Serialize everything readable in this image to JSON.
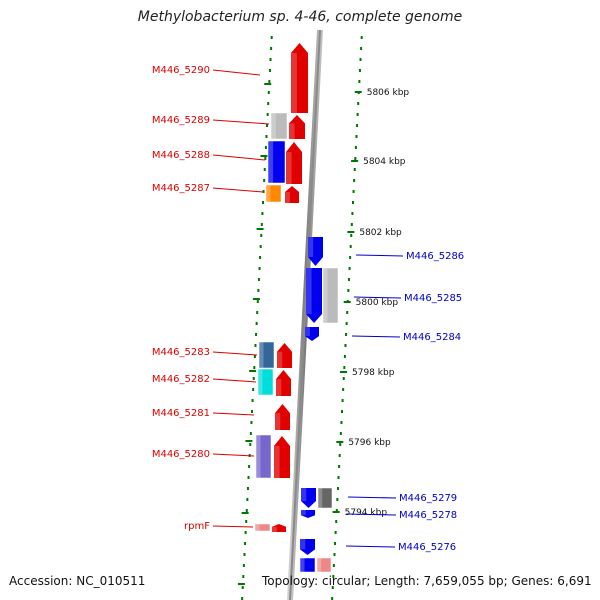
{
  "header": {
    "title": "Methylobacterium sp. 4-46, complete genome"
  },
  "footer": {
    "accession": "Accession: NC_010511",
    "summary": "Topology: circular; Length: 7,659,055 bp; Genes: 6,691"
  },
  "colors": {
    "plus_strand_label": "#dd0000",
    "minus_strand_label": "#0000cc",
    "tick_dots": "#007700",
    "backbone": "#8a8a8a"
  },
  "scale": {
    "unit": "kbp",
    "labels": [
      "5806 kbp",
      "5804 kbp",
      "5802 kbp",
      "5800 kbp",
      "5798 kbp",
      "5796 kbp",
      "5794 kbp"
    ]
  },
  "genes_plus": [
    {
      "label": "M446_5290",
      "color": "#e00000"
    },
    {
      "label": "M446_5289",
      "color": "#bbbbbb"
    },
    {
      "label": "M446_5288",
      "color": "#0000ee"
    },
    {
      "label": "M446_5287",
      "color": "#ff8800"
    },
    {
      "label": "M446_5283",
      "color": "#336699"
    },
    {
      "label": "M446_5282",
      "color": "#00dddd"
    },
    {
      "label": "M446_5281",
      "color": "#e00000"
    },
    {
      "label": "M446_5280",
      "color": "#7766cc"
    },
    {
      "label": "rpmF",
      "color": "#ee8888"
    }
  ],
  "genes_minus": [
    {
      "label": "M446_5286",
      "color": "#0000ee"
    },
    {
      "label": "M446_5285",
      "color": "#bbbbbb"
    },
    {
      "label": "M446_5284",
      "color": "#0000ee"
    },
    {
      "label": "M446_5279",
      "color": "#666666"
    },
    {
      "label": "M446_5278",
      "color": "#0000ee"
    },
    {
      "label": "M446_5276",
      "color": "#ee8888"
    }
  ]
}
